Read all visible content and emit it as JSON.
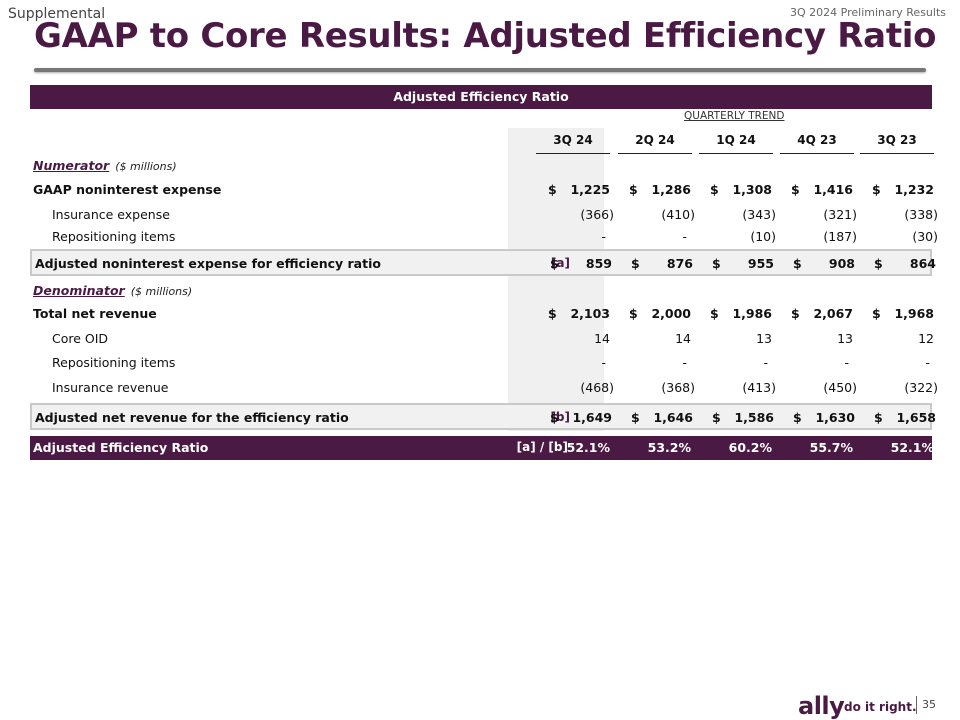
{
  "header": {
    "supplemental": "Supplemental",
    "prelim": "3Q 2024 Preliminary Results",
    "title": "GAAP to Core Results: Adjusted Efficiency Ratio"
  },
  "table": {
    "band_title": "Adjusted Efficiency Ratio",
    "trend_label": "QUARTERLY TREND",
    "columns": [
      "3Q 24",
      "2Q 24",
      "1Q 24",
      "4Q 23",
      "3Q 23"
    ],
    "numerator": {
      "label": "Numerator",
      "unit": "($ millions)"
    },
    "denominator": {
      "label": "Denominator",
      "unit": "($ millions)"
    },
    "rows": {
      "gaap_nonint": {
        "label": "GAAP noninterest expense",
        "values": [
          "1,225",
          "1,286",
          "1,308",
          "1,416",
          "1,232"
        ],
        "dollar": "$"
      },
      "insurance_exp": {
        "label": "Insurance expense",
        "values": [
          "(366)",
          "(410)",
          "(343)",
          "(321)",
          "(338)"
        ]
      },
      "repo_items_1": {
        "label": "Repositioning items",
        "values": [
          "-",
          "-",
          "(10)",
          "(187)",
          "(30)"
        ]
      },
      "adj_nonint": {
        "label": "Adjusted noninterest expense for efficiency ratio",
        "tag": "[a]",
        "values": [
          "859",
          "876",
          "955",
          "908",
          "864"
        ],
        "dollar": "$"
      },
      "total_rev": {
        "label": "Total net revenue",
        "values": [
          "2,103",
          "2,000",
          "1,986",
          "2,067",
          "1,968"
        ],
        "dollar": "$"
      },
      "core_oid": {
        "label": "Core OID",
        "values": [
          "14",
          "14",
          "13",
          "13",
          "12"
        ]
      },
      "repo_items_2": {
        "label": "Repositioning items",
        "values": [
          "-",
          "-",
          "-",
          "-",
          "-"
        ]
      },
      "insurance_rev": {
        "label": "Insurance revenue",
        "values": [
          "(468)",
          "(368)",
          "(413)",
          "(450)",
          "(322)"
        ]
      },
      "adj_rev": {
        "label": "Adjusted net revenue for the efficiency ratio",
        "tag": "[b]",
        "values": [
          "1,649",
          "1,646",
          "1,586",
          "1,630",
          "1,658"
        ],
        "dollar": "$"
      },
      "ratio": {
        "label": "Adjusted Efficiency Ratio",
        "tag": "[a] / [b]",
        "values": [
          "52.1%",
          "53.2%",
          "60.2%",
          "55.7%",
          "52.1%"
        ]
      }
    }
  },
  "footer": {
    "logo": "ally",
    "tagline": "do it right.",
    "page": "35"
  },
  "colors": {
    "brand": "#4a1a44"
  }
}
